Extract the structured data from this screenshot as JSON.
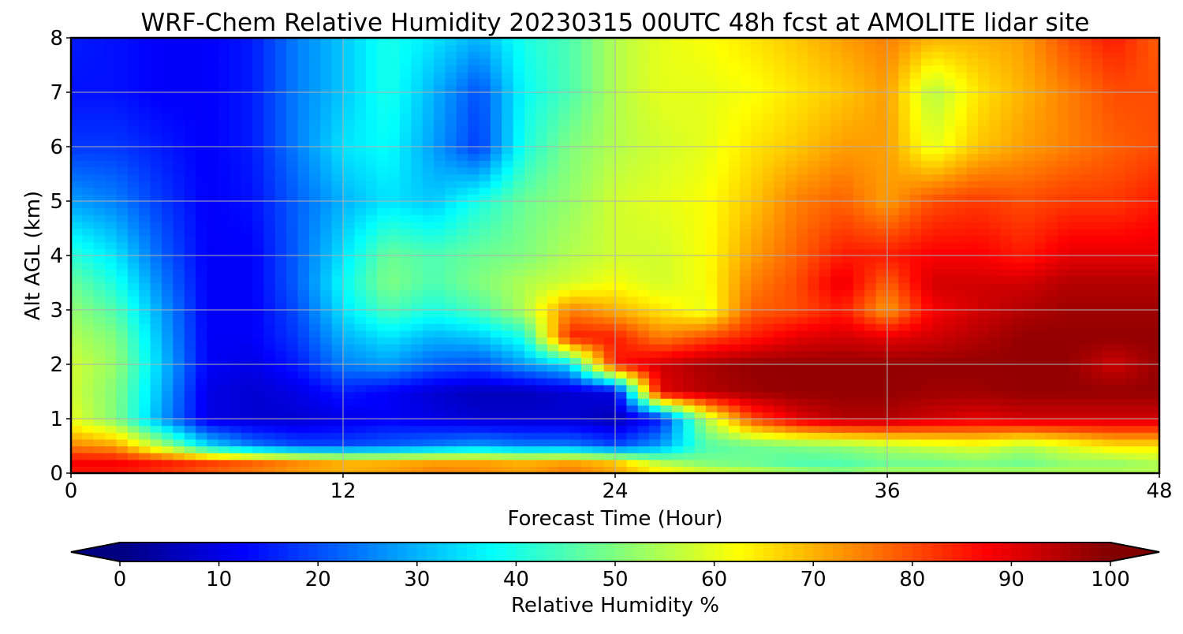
{
  "chart_data": {
    "type": "heatmap",
    "title": "WRF-Chem Relative Humidity 20230315 00UTC 48h fcst at AMOLITE lidar site",
    "xlabel": "Forecast Time (Hour)",
    "ylabel": "Alt AGL (km)",
    "xlim": [
      0,
      48
    ],
    "ylim": [
      0,
      8
    ],
    "x_ticks": [
      0,
      12,
      24,
      36,
      48
    ],
    "y_ticks": [
      0,
      1,
      2,
      3,
      4,
      5,
      6,
      7,
      8
    ],
    "grid": true,
    "colorscale": "jet",
    "colorbar": {
      "label": "Relative Humidity %",
      "ticks": [
        0,
        10,
        20,
        30,
        40,
        50,
        60,
        70,
        80,
        90,
        100
      ],
      "range": [
        0,
        100
      ],
      "extend": "both",
      "orientation": "horizontal"
    },
    "x": [
      0,
      2,
      4,
      6,
      8,
      10,
      12,
      14,
      16,
      18,
      20,
      22,
      24,
      26,
      28,
      30,
      32,
      34,
      36,
      38,
      40,
      42,
      44,
      46,
      48
    ],
    "y": [
      0,
      0.2,
      0.5,
      1,
      1.5,
      2,
      2.5,
      3,
      3.5,
      4,
      5,
      6,
      7,
      8
    ],
    "z": [
      [
        85,
        85,
        82,
        78,
        75,
        72,
        70,
        72,
        75,
        74,
        72,
        76,
        72,
        65,
        60,
        58,
        55,
        52,
        55,
        55,
        55,
        55,
        55,
        55,
        55
      ],
      [
        88,
        88,
        85,
        82,
        78,
        74,
        70,
        70,
        72,
        72,
        70,
        72,
        68,
        55,
        50,
        48,
        45,
        45,
        48,
        48,
        50,
        48,
        52,
        52,
        55
      ],
      [
        75,
        72,
        55,
        35,
        25,
        20,
        20,
        22,
        25,
        28,
        25,
        25,
        20,
        28,
        45,
        48,
        50,
        52,
        55,
        58,
        60,
        55,
        60,
        65,
        65
      ],
      [
        60,
        50,
        28,
        10,
        8,
        8,
        10,
        12,
        10,
        8,
        8,
        8,
        5,
        15,
        55,
        80,
        90,
        95,
        95,
        92,
        90,
        92,
        92,
        92,
        92
      ],
      [
        58,
        50,
        30,
        10,
        8,
        10,
        15,
        12,
        8,
        6,
        6,
        8,
        10,
        90,
        95,
        97,
        98,
        98,
        98,
        97,
        97,
        98,
        98,
        98,
        98
      ],
      [
        58,
        52,
        32,
        12,
        10,
        15,
        25,
        28,
        22,
        20,
        28,
        35,
        85,
        92,
        96,
        98,
        98,
        98,
        98,
        98,
        98,
        98,
        98,
        92,
        98
      ],
      [
        55,
        50,
        30,
        12,
        12,
        18,
        30,
        35,
        30,
        32,
        40,
        85,
        85,
        75,
        80,
        85,
        90,
        92,
        90,
        92,
        95,
        98,
        98,
        98,
        98
      ],
      [
        52,
        45,
        28,
        12,
        12,
        20,
        35,
        45,
        40,
        45,
        55,
        75,
        70,
        65,
        60,
        78,
        80,
        85,
        72,
        88,
        92,
        95,
        97,
        97,
        97
      ],
      [
        48,
        40,
        25,
        12,
        12,
        22,
        38,
        50,
        45,
        50,
        55,
        58,
        62,
        58,
        62,
        75,
        80,
        90,
        78,
        92,
        92,
        92,
        95,
        95,
        95
      ],
      [
        42,
        35,
        22,
        12,
        12,
        22,
        35,
        48,
        45,
        48,
        50,
        55,
        58,
        58,
        62,
        72,
        78,
        85,
        85,
        88,
        88,
        85,
        90,
        90,
        90
      ],
      [
        28,
        25,
        18,
        12,
        14,
        22,
        30,
        35,
        32,
        40,
        48,
        52,
        58,
        60,
        62,
        68,
        75,
        78,
        72,
        80,
        82,
        80,
        82,
        82,
        85
      ],
      [
        18,
        18,
        15,
        12,
        15,
        25,
        35,
        38,
        28,
        18,
        40,
        50,
        55,
        58,
        60,
        65,
        68,
        72,
        72,
        60,
        68,
        72,
        75,
        78,
        80
      ],
      [
        14,
        14,
        12,
        12,
        15,
        25,
        32,
        40,
        30,
        20,
        38,
        45,
        55,
        60,
        60,
        62,
        65,
        68,
        72,
        55,
        65,
        70,
        75,
        80,
        80
      ],
      [
        15,
        14,
        12,
        12,
        15,
        25,
        32,
        40,
        35,
        30,
        40,
        45,
        55,
        60,
        62,
        65,
        68,
        72,
        75,
        70,
        70,
        72,
        80,
        85,
        78
      ]
    ]
  }
}
